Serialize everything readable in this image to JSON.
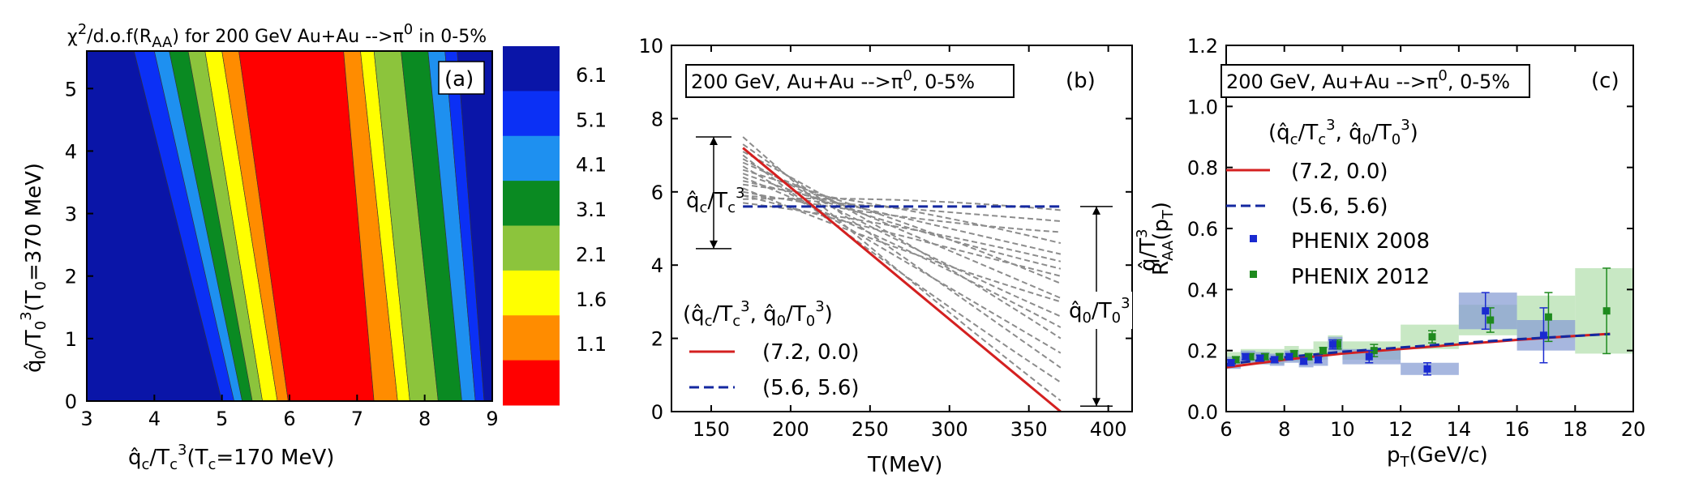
{
  "chart_data": [
    {
      "type": "heatmap",
      "panel": "(a)",
      "title_parts": [
        "χ",
        "2",
        "/d.o.f(R",
        "AA",
        ") for 200 GeV Au+Au -->π",
        "0",
        " in 0-5%"
      ],
      "xlabel_parts": [
        "q̂",
        "c",
        "/T",
        "c",
        "3",
        "(T",
        "c",
        "=170 MeV)"
      ],
      "ylabel_parts": [
        "q̂",
        "0",
        "/T",
        "0",
        "3",
        "(T",
        "0",
        "=370 MeV)"
      ],
      "xlim": [
        3,
        9
      ],
      "ylim": [
        0,
        5.6
      ],
      "xticks": [
        "3",
        "4",
        "5",
        "6",
        "7",
        "8",
        "9"
      ],
      "yticks": [
        "0",
        "1",
        "2",
        "3",
        "4",
        "5"
      ],
      "colorbar_labels": [
        "6.1",
        "5.1",
        "4.1",
        "3.1",
        "2.1",
        "1.6",
        "1.1"
      ],
      "colorbar_colors": [
        "#0a15a8",
        "#0b30f5",
        "#1e90f0",
        "#0a8a22",
        "#8cc43c",
        "#ffff00",
        "#ff8c00",
        "#ff0000"
      ],
      "bands": [
        {
          "level": "6.1",
          "left_x_at_y0": [
            3,
            3
          ],
          "right_x_at_y0": [
            5.0,
            3.7
          ],
          "color": "#0a15a8"
        },
        {
          "level": "5.1",
          "x_at_y0": [
            5.0,
            5.18
          ],
          "x_at_y5_6": [
            3.7,
            4.0
          ],
          "color": "#0b30f5"
        },
        {
          "level": "4.1",
          "x_at_y0": [
            5.18,
            5.3
          ],
          "x_at_y5_6": [
            4.0,
            4.22
          ],
          "color": "#1e90f0"
        },
        {
          "level": "3.1",
          "x_at_y0": [
            5.3,
            5.45
          ],
          "x_at_y5_6": [
            4.22,
            4.5
          ],
          "color": "#0a8a22"
        },
        {
          "level": "2.1",
          "x_at_y0": [
            5.45,
            5.6
          ],
          "x_at_y5_6": [
            4.5,
            4.75
          ],
          "color": "#8cc43c"
        },
        {
          "level": "1.6",
          "x_at_y0": [
            5.6,
            5.82
          ],
          "x_at_y5_6": [
            4.75,
            5.0
          ],
          "color": "#ffff00"
        },
        {
          "level": "1.1",
          "x_at_y0": [
            5.82,
            5.98
          ],
          "x_at_y5_6": [
            5.0,
            5.25
          ],
          "color": "#ff8c00"
        },
        {
          "level": "min",
          "x_at_y0": [
            5.98,
            7.25
          ],
          "x_at_y5_6": [
            5.25,
            6.8
          ],
          "color": "#ff0000"
        },
        {
          "level": "1.1",
          "x_at_y0": [
            7.25,
            7.6
          ],
          "x_at_y5_6": [
            6.8,
            7.05
          ],
          "color": "#ff8c00"
        },
        {
          "level": "1.6",
          "x_at_y0": [
            7.6,
            7.78
          ],
          "x_at_y5_6": [
            7.05,
            7.25
          ],
          "color": "#ffff00"
        },
        {
          "level": "2.1",
          "x_at_y0": [
            7.78,
            8.2
          ],
          "x_at_y5_6": [
            7.25,
            7.65
          ],
          "color": "#8cc43c"
        },
        {
          "level": "3.1",
          "x_at_y0": [
            8.2,
            8.55
          ],
          "x_at_y5_6": [
            7.65,
            8.05
          ],
          "color": "#0a8a22"
        },
        {
          "level": "4.1",
          "x_at_y0": [
            8.55,
            8.75
          ],
          "x_at_y5_6": [
            8.05,
            8.3
          ],
          "color": "#1e90f0"
        },
        {
          "level": "5.1",
          "x_at_y0": [
            8.75,
            8.88
          ],
          "x_at_y5_6": [
            8.3,
            8.48
          ],
          "color": "#0b30f5"
        },
        {
          "level": "6.1",
          "x_at_y0": [
            8.88,
            9.0
          ],
          "x_at_y5_6": [
            8.48,
            9.0
          ],
          "color": "#0a15a8"
        }
      ]
    },
    {
      "type": "line",
      "panel": "(b)",
      "box_label_parts": [
        "200 GeV, Au+Au -->π",
        "0",
        ", 0-5%"
      ],
      "xlabel": "T(MeV)",
      "ylabel_parts": [
        "q̂",
        "/T",
        "3"
      ],
      "xlim": [
        125,
        415
      ],
      "ylim": [
        0,
        10
      ],
      "xticks": [
        "150",
        "200",
        "250",
        "300",
        "350",
        "400"
      ],
      "yticks": [
        "0",
        "2",
        "4",
        "6",
        "8",
        "10"
      ],
      "legend_title_parts": [
        "(q̂",
        "c",
        "/T",
        "c",
        "3",
        ", q̂",
        "0",
        "/T",
        "0",
        "3",
        ")"
      ],
      "legend_position": "bottom-left",
      "annotation_left_parts": [
        "q̂",
        "c",
        "/T",
        "c",
        "3"
      ],
      "annotation_left_arrow_y": [
        4.45,
        7.5
      ],
      "annotation_right_parts": [
        "q̂",
        "0",
        "/T",
        "0",
        "3"
      ],
      "annotation_right_arrow_y": [
        0.15,
        5.6
      ],
      "series": [
        {
          "name": "(7.2, 0.0)",
          "style": "solid",
          "color": "#d42020",
          "x": [
            170,
            370
          ],
          "y": [
            7.2,
            0.0
          ]
        },
        {
          "name": "(5.6, 5.6)",
          "style": "dashed",
          "color": "#1428a0",
          "x": [
            170,
            370
          ],
          "y": [
            5.6,
            5.6
          ]
        }
      ],
      "grey_band_curves": {
        "color": "#8c8c8c",
        "x": [
          170,
          370
        ],
        "pairs": [
          [
            7.5,
            0.3
          ],
          [
            7.3,
            1.2
          ],
          [
            7.1,
            2.0
          ],
          [
            6.9,
            2.6
          ],
          [
            6.8,
            3.1
          ],
          [
            6.6,
            3.5
          ],
          [
            6.5,
            3.9
          ],
          [
            6.3,
            4.3
          ],
          [
            6.2,
            4.6
          ],
          [
            6.0,
            4.9
          ],
          [
            5.9,
            5.2
          ],
          [
            5.8,
            5.5
          ],
          [
            7.0,
            0.8
          ],
          [
            6.7,
            1.6
          ],
          [
            6.4,
            2.3
          ],
          [
            6.1,
            3.0
          ],
          [
            5.9,
            3.7
          ],
          [
            5.7,
            4.1
          ]
        ]
      }
    },
    {
      "type": "scatter",
      "panel": "(c)",
      "box_label_parts": [
        "200 GeV, Au+Au -->π",
        "0",
        ", 0-5%"
      ],
      "xlabel_parts": [
        "p",
        "T",
        "(GeV/c)"
      ],
      "ylabel_parts": [
        "R",
        "AA",
        "(p",
        "T",
        ")"
      ],
      "xlim": [
        6,
        20
      ],
      "ylim": [
        0,
        1.2
      ],
      "xticks": [
        "6",
        "8",
        "10",
        "12",
        "14",
        "16",
        "18",
        "20"
      ],
      "yticks": [
        "0.0",
        "0.2",
        "0.4",
        "0.6",
        "0.8",
        "1.0",
        "1.2"
      ],
      "legend_title_parts": [
        "(q̂",
        "c",
        "/T",
        "c",
        "3",
        ", q̂",
        "0",
        "/T",
        "0",
        "3",
        ")"
      ],
      "legend_position": "top-left",
      "series": [
        {
          "name": "(7.2, 0.0)",
          "style": "solid",
          "color": "#d42020",
          "x": [
            6,
            8,
            10,
            12,
            14,
            16,
            18,
            19.2
          ],
          "y": [
            0.145,
            0.17,
            0.19,
            0.205,
            0.22,
            0.235,
            0.248,
            0.255
          ]
        },
        {
          "name": "(5.6, 5.6)",
          "style": "dashed",
          "color": "#1428a0",
          "x": [
            6,
            8,
            10,
            12,
            14,
            16,
            18,
            19.2
          ],
          "y": [
            0.155,
            0.178,
            0.196,
            0.21,
            0.224,
            0.237,
            0.248,
            0.254
          ]
        },
        {
          "name": "PHENIX 2008",
          "style": "marker",
          "color": "#1a2ad0",
          "band_color": "#8a9fd4",
          "x": [
            6.25,
            6.75,
            7.25,
            7.75,
            8.25,
            8.75,
            9.25,
            9.75,
            11,
            13,
            15,
            17
          ],
          "y": [
            0.16,
            0.18,
            0.175,
            0.17,
            0.18,
            0.165,
            0.17,
            0.22,
            0.18,
            0.14,
            0.33,
            0.25
          ],
          "err": [
            0.01,
            0.01,
            0.01,
            0.01,
            0.01,
            0.01,
            0.01,
            0.015,
            0.02,
            0.02,
            0.06,
            0.09
          ],
          "sys": [
            0.02,
            0.02,
            0.02,
            0.02,
            0.02,
            0.02,
            0.02,
            0.025,
            0.025,
            0.02,
            0.06,
            0.05
          ]
        },
        {
          "name": "PHENIX 2012",
          "style": "marker",
          "color": "#1e8a1e",
          "band_color": "#b6e0b0",
          "x": [
            6.25,
            6.75,
            7.25,
            7.75,
            8.25,
            8.75,
            9.25,
            9.75,
            11,
            13,
            15,
            17,
            19
          ],
          "y": [
            0.17,
            0.18,
            0.18,
            0.18,
            0.19,
            0.18,
            0.2,
            0.22,
            0.2,
            0.245,
            0.3,
            0.31,
            0.33
          ],
          "err": [
            0.01,
            0.01,
            0.01,
            0.01,
            0.01,
            0.01,
            0.01,
            0.015,
            0.02,
            0.02,
            0.04,
            0.08,
            0.14
          ],
          "sys": [
            0.025,
            0.025,
            0.025,
            0.025,
            0.025,
            0.025,
            0.03,
            0.03,
            0.03,
            0.04,
            0.05,
            0.07,
            0.14
          ]
        }
      ]
    }
  ]
}
